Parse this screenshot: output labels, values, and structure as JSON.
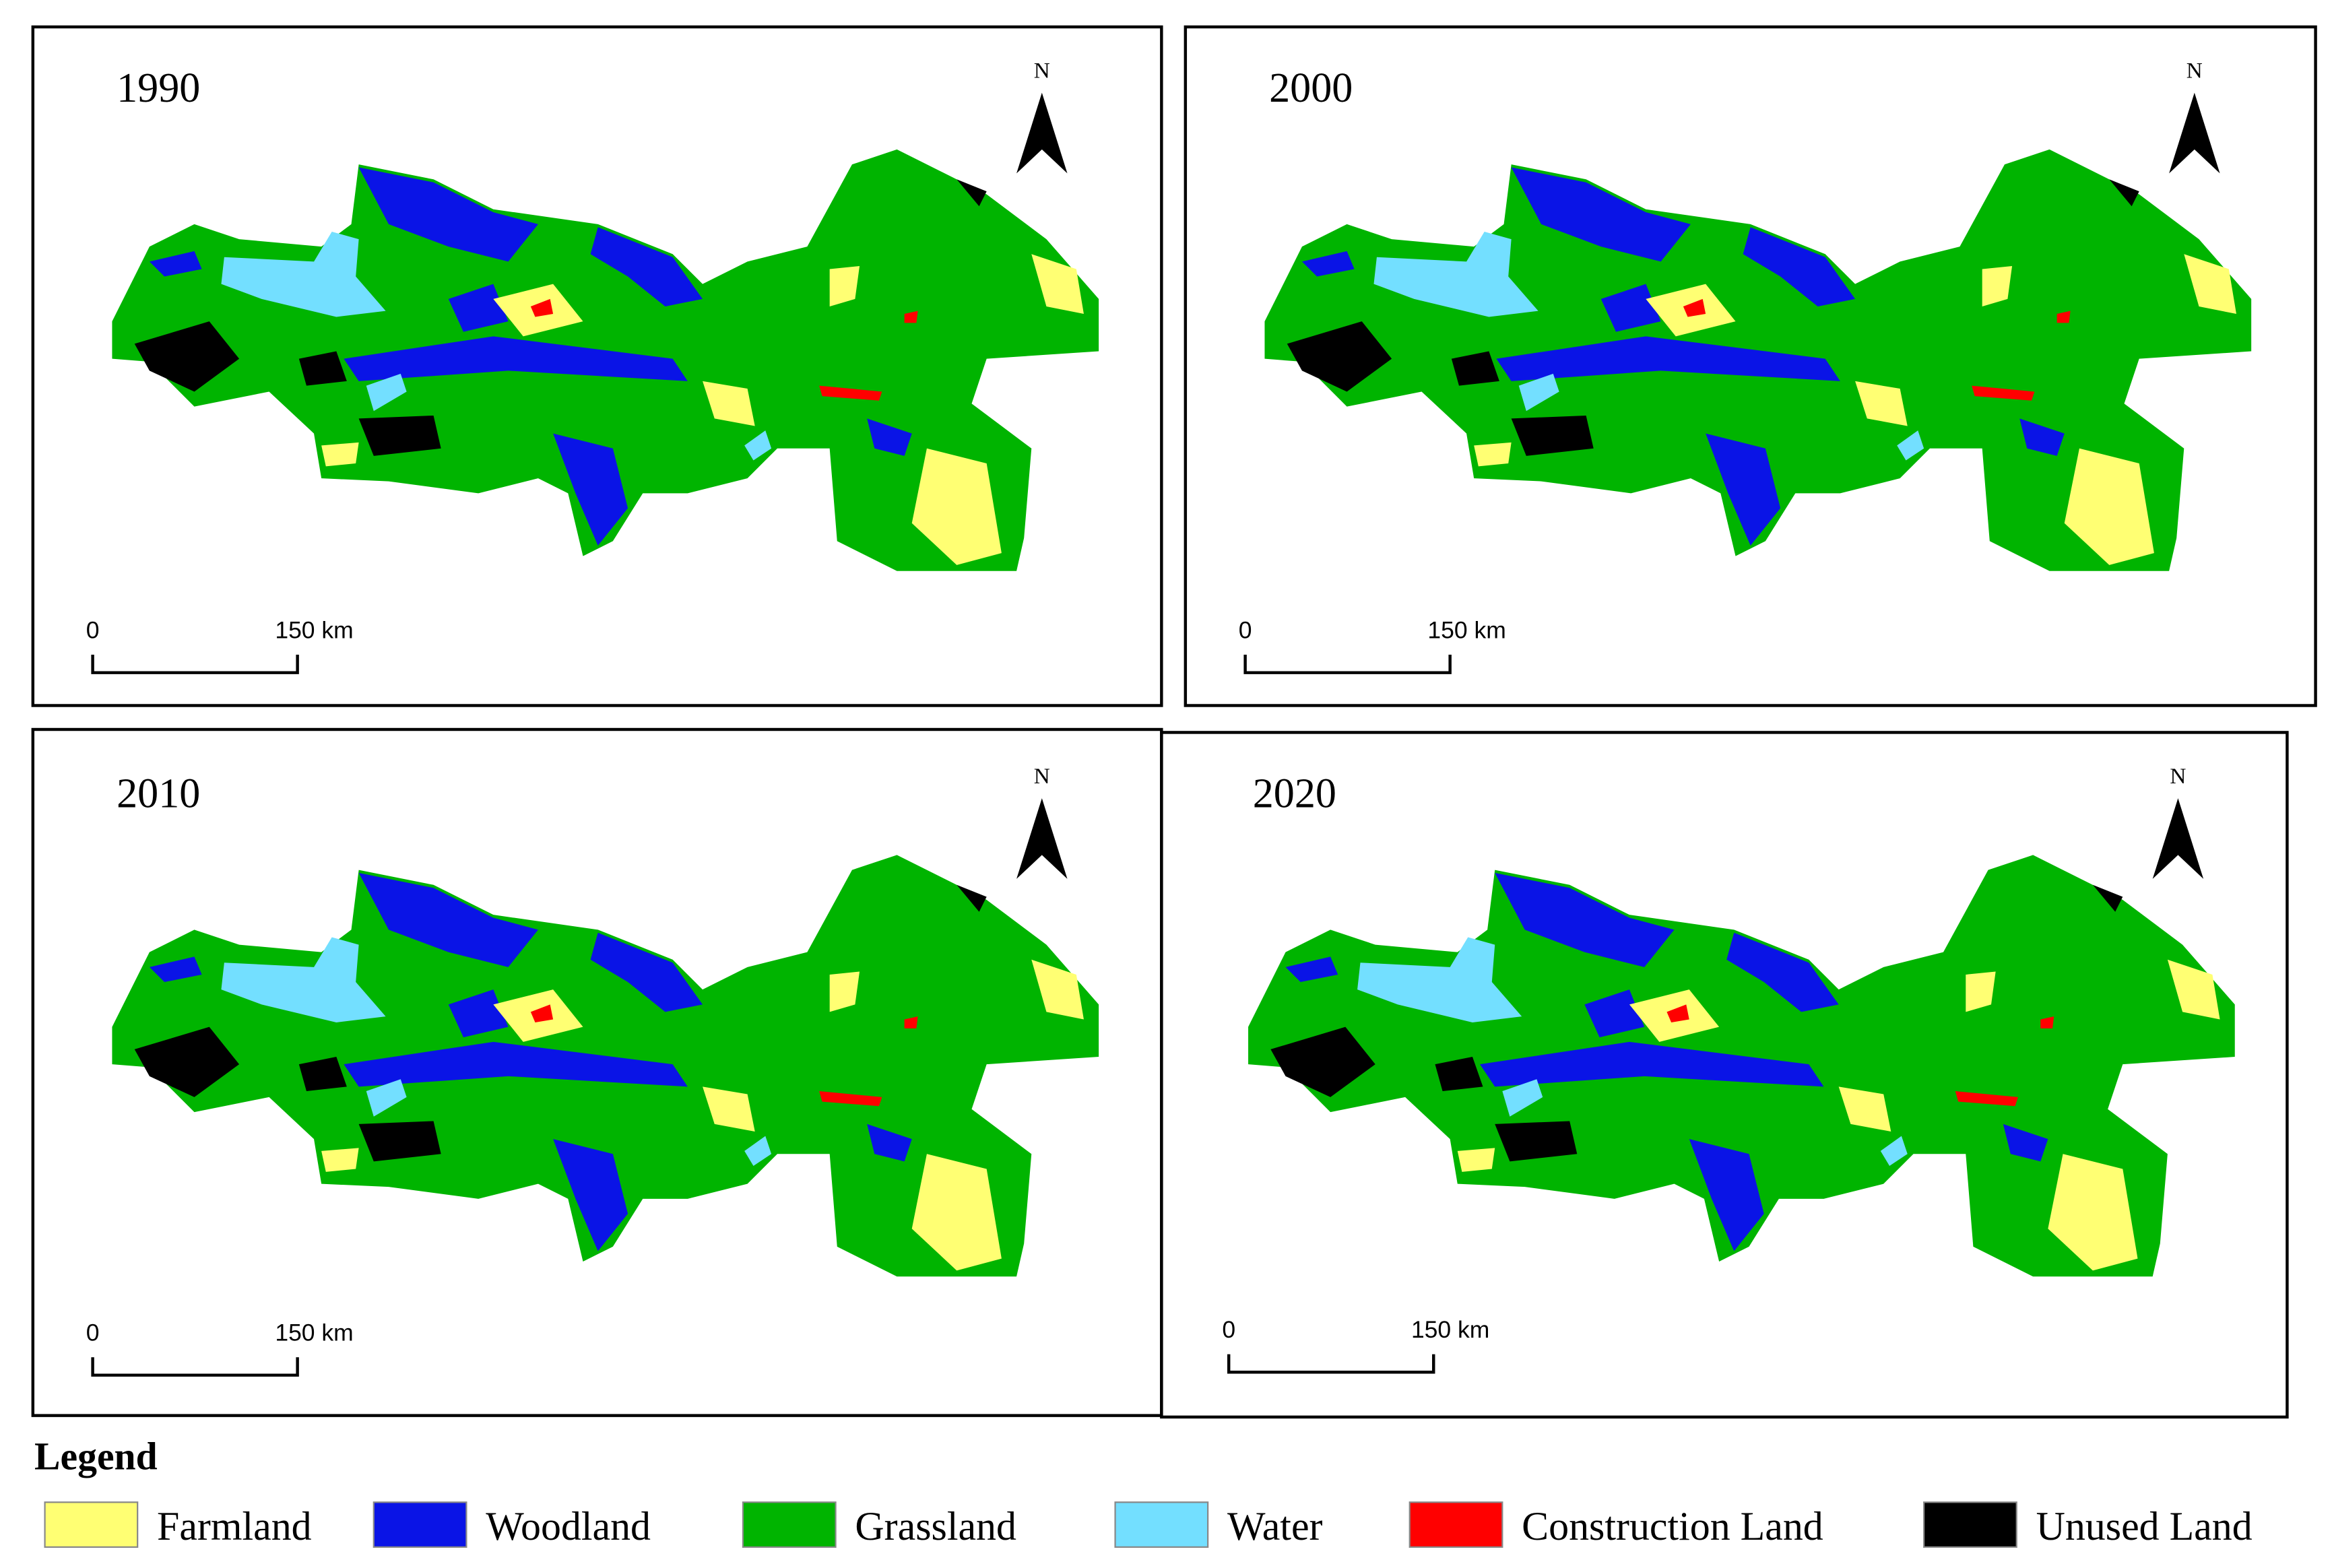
{
  "panels": [
    {
      "year": "1990",
      "north": "N",
      "scale_start": "0",
      "scale_end": "150 km"
    },
    {
      "year": "2000",
      "north": "N",
      "scale_start": "0",
      "scale_end": "150 km"
    },
    {
      "year": "2010",
      "north": "N",
      "scale_start": "0",
      "scale_end": "150 km"
    },
    {
      "year": "2020",
      "north": "N",
      "scale_start": "0",
      "scale_end": "150 km"
    }
  ],
  "legend": {
    "title": "Legend",
    "items": [
      {
        "label": "Farmland",
        "color": "#ffff73"
      },
      {
        "label": "Woodland",
        "color": "#0a14e6"
      },
      {
        "label": "Grassland",
        "color": "#00b400"
      },
      {
        "label": "Water",
        "color": "#73dfff"
      },
      {
        "label": "Construction Land",
        "color": "#ff0000"
      },
      {
        "label": "Unused Land",
        "color": "#000000"
      }
    ]
  }
}
